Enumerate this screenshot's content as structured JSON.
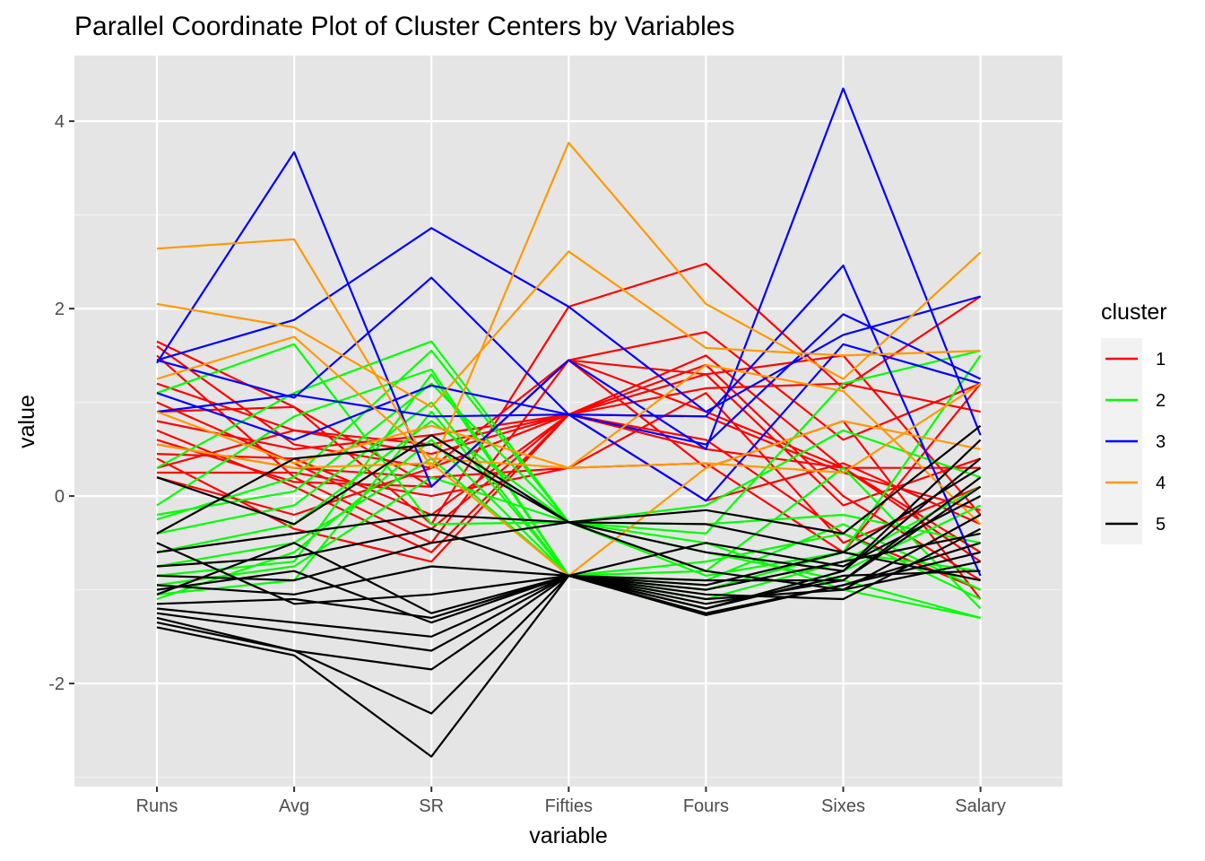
{
  "chart_data": {
    "type": "line",
    "title": "Parallel Coordinate Plot of Cluster Centers by Variables",
    "xlabel": "variable",
    "ylabel": "value",
    "categories": [
      "Runs",
      "Avg",
      "SR",
      "Fifties",
      "Fours",
      "Sixes",
      "Salary"
    ],
    "ylim": [
      -3.1,
      4.7
    ],
    "yticks": [
      -2,
      0,
      2,
      4
    ],
    "grid": true,
    "legend": {
      "title": "cluster",
      "position": "right",
      "entries": [
        {
          "label": "1",
          "color": "#ff0000"
        },
        {
          "label": "2",
          "color": "#00ff00"
        },
        {
          "label": "3",
          "color": "#0000ff"
        },
        {
          "label": "4",
          "color": "#ff9900"
        },
        {
          "label": "5",
          "color": "#000000"
        }
      ]
    },
    "series": [
      {
        "cluster": "1",
        "values": [
          1.65,
          0.95,
          -0.3,
          2.02,
          2.48,
          1.15,
          2.13
        ]
      },
      {
        "cluster": "1",
        "values": [
          1.6,
          0.55,
          0.3,
          1.45,
          1.75,
          0.6,
          1.2
        ]
      },
      {
        "cluster": "1",
        "values": [
          1.5,
          0.2,
          -0.5,
          1.45,
          1.3,
          1.5,
          -0.2
        ]
      },
      {
        "cluster": "1",
        "values": [
          1.2,
          0.7,
          0.55,
          0.87,
          1.5,
          0.3,
          0.3
        ]
      },
      {
        "cluster": "1",
        "values": [
          1.0,
          0.35,
          -0.35,
          0.87,
          1.15,
          1.2,
          0.9
        ]
      },
      {
        "cluster": "1",
        "values": [
          0.9,
          0.95,
          0.1,
          1.45,
          0.9,
          0.3,
          -0.6
        ]
      },
      {
        "cluster": "1",
        "values": [
          0.8,
          0.5,
          0.65,
          0.87,
          0.6,
          -0.4,
          -1.0
        ]
      },
      {
        "cluster": "1",
        "values": [
          0.7,
          0.1,
          -0.6,
          0.87,
          1.3,
          -0.1,
          0.4
        ]
      },
      {
        "cluster": "1",
        "values": [
          0.55,
          0.3,
          0.2,
          0.3,
          0.35,
          -0.6,
          1.2
        ]
      },
      {
        "cluster": "1",
        "values": [
          0.4,
          -0.35,
          -0.7,
          0.87,
          1.4,
          0.0,
          -0.9
        ]
      },
      {
        "cluster": "1",
        "values": [
          0.3,
          0.7,
          0.45,
          0.87,
          -0.05,
          0.35,
          -0.3
        ]
      },
      {
        "cluster": "1",
        "values": [
          0.25,
          0.25,
          0.0,
          0.3,
          1.1,
          -0.5,
          0.1
        ]
      },
      {
        "cluster": "1",
        "values": [
          0.2,
          -0.2,
          0.3,
          0.87,
          0.5,
          0.3,
          -0.7
        ]
      },
      {
        "cluster": "1",
        "values": [
          0.45,
          0.4,
          -0.2,
          0.87,
          0.85,
          0.25,
          -0.15
        ]
      },
      {
        "cluster": "1",
        "values": [
          0.6,
          0.15,
          0.1,
          1.45,
          0.3,
          0.8,
          -1.1
        ]
      },
      {
        "cluster": "2",
        "values": [
          1.1,
          1.62,
          -0.3,
          -0.28,
          -0.4,
          1.2,
          1.55
        ]
      },
      {
        "cluster": "2",
        "values": [
          0.3,
          1.1,
          1.65,
          -0.28,
          -0.1,
          0.7,
          0.2
        ]
      },
      {
        "cluster": "2",
        "values": [
          -0.1,
          0.85,
          1.35,
          -0.85,
          -0.8,
          0.3,
          -1.2
        ]
      },
      {
        "cluster": "2",
        "values": [
          -0.25,
          0.2,
          1.55,
          -0.28,
          -0.3,
          -0.2,
          -0.5
        ]
      },
      {
        "cluster": "2",
        "values": [
          -0.4,
          -0.1,
          1.0,
          -0.85,
          -1.0,
          -0.6,
          1.5
        ]
      },
      {
        "cluster": "2",
        "values": [
          -0.6,
          -0.3,
          0.8,
          -0.28,
          -0.6,
          -0.9,
          -1.3
        ]
      },
      {
        "cluster": "2",
        "values": [
          -0.75,
          -0.5,
          0.4,
          -0.85,
          -1.2,
          -0.8,
          -0.1
        ]
      },
      {
        "cluster": "2",
        "values": [
          -0.85,
          -0.7,
          1.3,
          -0.85,
          -0.9,
          -0.3,
          -1.0
        ]
      },
      {
        "cluster": "2",
        "values": [
          -0.95,
          -0.75,
          0.2,
          -0.28,
          -0.5,
          -1.0,
          -1.3
        ]
      },
      {
        "cluster": "2",
        "values": [
          -1.05,
          -0.9,
          0.9,
          -0.85,
          -1.1,
          -0.7,
          0.1
        ]
      },
      {
        "cluster": "2",
        "values": [
          -1.1,
          -0.6,
          0.6,
          -0.85,
          -0.7,
          -0.4,
          -1.1
        ]
      },
      {
        "cluster": "2",
        "values": [
          -0.2,
          0.05,
          1.2,
          -0.28,
          -0.85,
          -0.6,
          -0.8
        ]
      },
      {
        "cluster": "3",
        "values": [
          1.42,
          3.67,
          0.1,
          1.45,
          0.5,
          4.35,
          0.65
        ]
      },
      {
        "cluster": "3",
        "values": [
          1.45,
          1.88,
          2.86,
          2.02,
          0.9,
          1.72,
          2.13
        ]
      },
      {
        "cluster": "3",
        "values": [
          1.45,
          1.05,
          2.33,
          0.87,
          -0.05,
          1.62,
          1.2
        ]
      },
      {
        "cluster": "3",
        "values": [
          0.9,
          1.08,
          0.85,
          0.87,
          0.85,
          2.46,
          -0.85
        ]
      },
      {
        "cluster": "3",
        "values": [
          1.1,
          0.6,
          1.18,
          0.87,
          0.55,
          1.94,
          1.25
        ]
      },
      {
        "cluster": "4",
        "values": [
          2.64,
          2.74,
          0.3,
          3.77,
          2.05,
          1.25,
          2.6
        ]
      },
      {
        "cluster": "4",
        "values": [
          2.05,
          1.8,
          0.95,
          2.61,
          1.58,
          1.5,
          1.55
        ]
      },
      {
        "cluster": "4",
        "values": [
          1.25,
          1.7,
          0.4,
          0.3,
          0.35,
          0.25,
          1.2
        ]
      },
      {
        "cluster": "4",
        "values": [
          0.55,
          0.3,
          0.35,
          -0.85,
          0.3,
          0.8,
          0.5
        ]
      },
      {
        "cluster": "4",
        "values": [
          0.9,
          0.35,
          0.75,
          0.3,
          1.4,
          1.12,
          -0.3
        ]
      },
      {
        "cluster": "5",
        "values": [
          0.2,
          -0.3,
          0.65,
          -0.28,
          -0.15,
          -0.4,
          0.75
        ]
      },
      {
        "cluster": "5",
        "values": [
          -0.4,
          0.4,
          0.55,
          -0.28,
          -0.6,
          -0.8,
          0.6
        ]
      },
      {
        "cluster": "5",
        "values": [
          -0.6,
          -0.4,
          -0.2,
          -0.28,
          -0.3,
          -0.6,
          0.3
        ]
      },
      {
        "cluster": "5",
        "values": [
          -0.75,
          -0.65,
          -0.35,
          -0.85,
          -0.9,
          -0.9,
          0.2
        ]
      },
      {
        "cluster": "5",
        "values": [
          -0.85,
          -0.9,
          -0.5,
          -0.28,
          -0.8,
          -1.0,
          -0.2
        ]
      },
      {
        "cluster": "5",
        "values": [
          -0.95,
          -1.05,
          -0.75,
          -0.85,
          -1.0,
          -0.7,
          -0.4
        ]
      },
      {
        "cluster": "5",
        "values": [
          -1.05,
          -0.5,
          -1.25,
          -0.85,
          -1.2,
          -0.8,
          0.4
        ]
      },
      {
        "cluster": "5",
        "values": [
          -1.15,
          -1.1,
          -1.3,
          -0.85,
          -1.25,
          -0.95,
          -0.6
        ]
      },
      {
        "cluster": "5",
        "values": [
          -1.2,
          -1.35,
          -1.5,
          -0.85,
          -1.05,
          -1.1,
          -0.35
        ]
      },
      {
        "cluster": "5",
        "values": [
          -1.25,
          -1.45,
          -1.65,
          -0.85,
          -1.15,
          -0.9,
          0.1
        ]
      },
      {
        "cluster": "5",
        "values": [
          -1.3,
          -1.65,
          -1.85,
          -0.85,
          -1.1,
          -1.0,
          -0.7
        ]
      },
      {
        "cluster": "5",
        "values": [
          -1.35,
          -1.65,
          -2.32,
          -0.85,
          -1.27,
          -0.95,
          -0.5
        ]
      },
      {
        "cluster": "5",
        "values": [
          -1.4,
          -1.7,
          -2.78,
          -0.85,
          -1.2,
          -0.85,
          -0.8
        ]
      },
      {
        "cluster": "5",
        "values": [
          -0.5,
          -1.15,
          -1.05,
          -0.85,
          -0.95,
          -0.6,
          -0.9
        ]
      },
      {
        "cluster": "5",
        "values": [
          -1.0,
          -0.8,
          -1.35,
          -0.85,
          -0.5,
          -0.75,
          0.0
        ]
      }
    ]
  }
}
